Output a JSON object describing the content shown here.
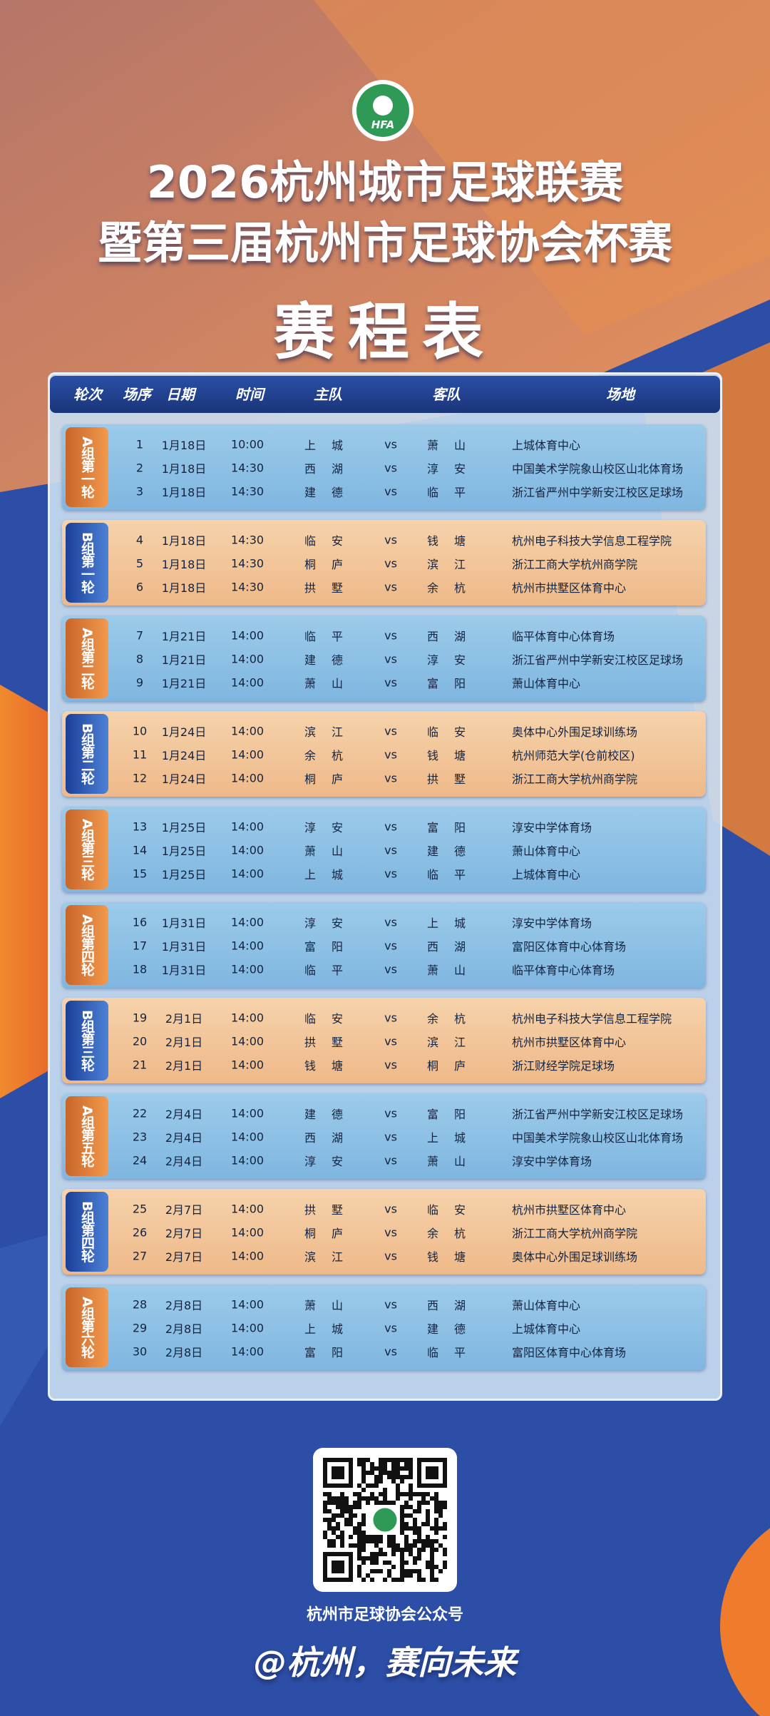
{
  "header": {
    "logo": "HFA",
    "title_line1": "2026杭州城市足球联赛",
    "title_line2": "暨第三届杭州市足球协会杯赛",
    "subtitle": "赛程表"
  },
  "table": {
    "columns": [
      "轮次",
      "场序",
      "日期",
      "时间",
      "主队",
      "客队",
      "场地"
    ],
    "groups": [
      {
        "label": "A组第一轮",
        "rows": [
          [
            "1",
            "1月18日",
            "10:00",
            "上城",
            "vs",
            "萧山",
            "上城体育中心"
          ],
          [
            "2",
            "1月18日",
            "14:30",
            "西湖",
            "vs",
            "淳安",
            "中国美术学院象山校区山北体育场"
          ],
          [
            "3",
            "1月18日",
            "14:30",
            "建德",
            "vs",
            "临平",
            "浙江省严州中学新安江校区足球场"
          ]
        ]
      },
      {
        "label": "B组第一轮",
        "rows": [
          [
            "4",
            "1月18日",
            "14:30",
            "临安",
            "vs",
            "钱塘",
            "杭州电子科技大学信息工程学院"
          ],
          [
            "5",
            "1月18日",
            "14:30",
            "桐庐",
            "vs",
            "滨江",
            "浙江工商大学杭州商学院"
          ],
          [
            "6",
            "1月18日",
            "14:30",
            "拱墅",
            "vs",
            "余杭",
            "杭州市拱墅区体育中心"
          ]
        ]
      },
      {
        "label": "A组第二轮",
        "rows": [
          [
            "7",
            "1月21日",
            "14:00",
            "临平",
            "vs",
            "西湖",
            "临平体育中心体育场"
          ],
          [
            "8",
            "1月21日",
            "14:00",
            "建德",
            "vs",
            "淳安",
            "浙江省严州中学新安江校区足球场"
          ],
          [
            "9",
            "1月21日",
            "14:00",
            "萧山",
            "vs",
            "富阳",
            "萧山体育中心"
          ]
        ]
      },
      {
        "label": "B组第二轮",
        "rows": [
          [
            "10",
            "1月24日",
            "14:00",
            "滨江",
            "vs",
            "临安",
            "奥体中心外围足球训练场"
          ],
          [
            "11",
            "1月24日",
            "14:00",
            "余杭",
            "vs",
            "钱塘",
            "杭州师范大学(仓前校区)"
          ],
          [
            "12",
            "1月24日",
            "14:00",
            "桐庐",
            "vs",
            "拱墅",
            "浙江工商大学杭州商学院"
          ]
        ]
      },
      {
        "label": "A组第三轮",
        "rows": [
          [
            "13",
            "1月25日",
            "14:00",
            "淳安",
            "vs",
            "富阳",
            "淳安中学体育场"
          ],
          [
            "14",
            "1月25日",
            "14:00",
            "萧山",
            "vs",
            "建德",
            "萧山体育中心"
          ],
          [
            "15",
            "1月25日",
            "14:00",
            "上城",
            "vs",
            "临平",
            "上城体育中心"
          ]
        ]
      },
      {
        "label": "A组第四轮",
        "rows": [
          [
            "16",
            "1月31日",
            "14:00",
            "淳安",
            "vs",
            "上城",
            "淳安中学体育场"
          ],
          [
            "17",
            "1月31日",
            "14:00",
            "富阳",
            "vs",
            "西湖",
            "富阳区体育中心体育场"
          ],
          [
            "18",
            "1月31日",
            "14:00",
            "临平",
            "vs",
            "萧山",
            "临平体育中心体育场"
          ]
        ]
      },
      {
        "label": "B组第三轮",
        "rows": [
          [
            "19",
            "2月1日",
            "14:00",
            "临安",
            "vs",
            "余杭",
            "杭州电子科技大学信息工程学院"
          ],
          [
            "20",
            "2月1日",
            "14:00",
            "拱墅",
            "vs",
            "滨江",
            "杭州市拱墅区体育中心"
          ],
          [
            "21",
            "2月1日",
            "14:00",
            "钱塘",
            "vs",
            "桐庐",
            "浙江财经学院足球场"
          ]
        ]
      },
      {
        "label": "A组第五轮",
        "rows": [
          [
            "22",
            "2月4日",
            "14:00",
            "建德",
            "vs",
            "富阳",
            "浙江省严州中学新安江校区足球场"
          ],
          [
            "23",
            "2月4日",
            "14:00",
            "西湖",
            "vs",
            "上城",
            "中国美术学院象山校区山北体育场"
          ],
          [
            "24",
            "2月4日",
            "14:00",
            "淳安",
            "vs",
            "萧山",
            "淳安中学体育场"
          ]
        ]
      },
      {
        "label": "B组第四轮",
        "rows": [
          [
            "25",
            "2月7日",
            "14:00",
            "拱墅",
            "vs",
            "临安",
            "杭州市拱墅区体育中心"
          ],
          [
            "26",
            "2月7日",
            "14:00",
            "桐庐",
            "vs",
            "余杭",
            "浙江工商大学杭州商学院"
          ],
          [
            "27",
            "2月7日",
            "14:00",
            "滨江",
            "vs",
            "钱塘",
            "奥体中心外围足球训练场"
          ]
        ]
      },
      {
        "label": "A组第六轮",
        "rows": [
          [
            "28",
            "2月8日",
            "14:00",
            "萧山",
            "vs",
            "西湖",
            "萧山体育中心"
          ],
          [
            "29",
            "2月8日",
            "14:00",
            "上城",
            "vs",
            "建德",
            "上城体育中心"
          ],
          [
            "30",
            "2月8日",
            "14:00",
            "富阳",
            "vs",
            "临平",
            "富阳区体育中心体育场"
          ]
        ]
      }
    ]
  },
  "footer": {
    "qr_caption": "杭州市足球协会公众号",
    "slogan": "@杭州，赛向未来"
  }
}
